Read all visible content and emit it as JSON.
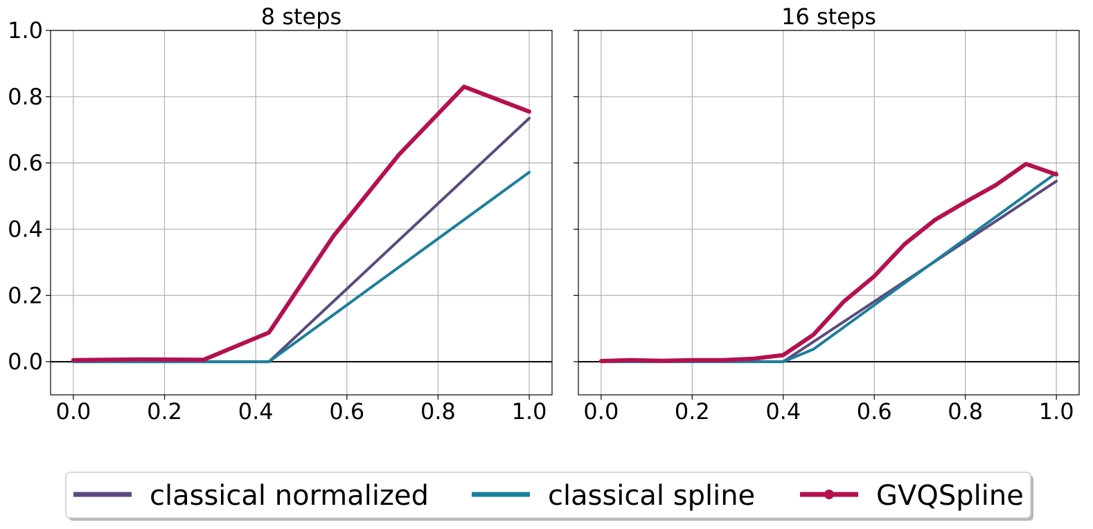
{
  "chart_data": [
    {
      "type": "line",
      "title": "8 steps",
      "xlabel": "",
      "ylabel": "",
      "xlim": [
        -0.05,
        1.05
      ],
      "ylim": [
        -0.1,
        1.0
      ],
      "xticks": [
        "0.0",
        "0.2",
        "0.4",
        "0.6",
        "0.8",
        "1.0"
      ],
      "yticks": [
        "0.0",
        "0.2",
        "0.4",
        "0.6",
        "0.8",
        "1.0"
      ],
      "grid": true,
      "series": [
        {
          "name": "classical normalized",
          "color": "#5b4a7e",
          "x": [
            0,
            0.143,
            0.286,
            0.429,
            1.0
          ],
          "y": [
            0,
            0,
            0,
            0,
            0.735
          ]
        },
        {
          "name": "classical spline",
          "color": "#1a7f9c",
          "x": [
            0,
            0.143,
            0.286,
            0.429,
            1.0
          ],
          "y": [
            0,
            0,
            0,
            0,
            0.572
          ]
        },
        {
          "name": "GVQSpline",
          "color": "#b5104f",
          "x": [
            0,
            0.143,
            0.286,
            0.429,
            0.571,
            0.714,
            0.857,
            1.0
          ],
          "y": [
            0.005,
            0.007,
            0.006,
            0.088,
            0.38,
            0.625,
            0.83,
            0.755
          ]
        }
      ]
    },
    {
      "type": "line",
      "title": "16 steps",
      "xlabel": "",
      "ylabel": "",
      "xlim": [
        -0.05,
        1.05
      ],
      "ylim": [
        -0.1,
        1.0
      ],
      "xticks": [
        "0.0",
        "0.2",
        "0.4",
        "0.6",
        "0.8",
        "1.0"
      ],
      "yticks": [
        "",
        "",
        "",
        "",
        "",
        ""
      ],
      "grid": true,
      "series": [
        {
          "name": "classical normalized",
          "color": "#5b4a7e",
          "x": [
            0,
            0.1333,
            0.2667,
            0.4,
            1.0
          ],
          "y": [
            0.002,
            0.001,
            0.001,
            0.0,
            0.545
          ]
        },
        {
          "name": "classical spline",
          "color": "#1a7f9c",
          "x": [
            0,
            0.1333,
            0.2667,
            0.4,
            0.4667,
            1.0
          ],
          "y": [
            0,
            0,
            0,
            0,
            0.038,
            0.57
          ]
        },
        {
          "name": "GVQSpline",
          "color": "#b5104f",
          "x": [
            0,
            0.0667,
            0.1333,
            0.2,
            0.2667,
            0.3333,
            0.4,
            0.4667,
            0.5333,
            0.6,
            0.6667,
            0.7333,
            0.8,
            0.8667,
            0.9333,
            1.0
          ],
          "y": [
            0.002,
            0.005,
            0.003,
            0.005,
            0.005,
            0.009,
            0.02,
            0.082,
            0.182,
            0.258,
            0.355,
            0.428,
            0.482,
            0.533,
            0.597,
            0.565
          ]
        }
      ]
    }
  ],
  "legend": {
    "placement": "bottom-center",
    "entries": [
      {
        "label": "classical normalized",
        "color": "#5b4a7e",
        "marker": false
      },
      {
        "label": "classical spline",
        "color": "#1a7f9c",
        "marker": false
      },
      {
        "label": "GVQSpline",
        "color": "#b5104f",
        "marker": true
      }
    ]
  }
}
